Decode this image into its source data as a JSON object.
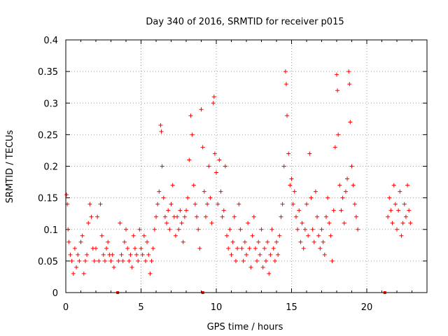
{
  "chart_data": {
    "type": "scatter",
    "title": "Day 340 of 2016, SRMTID for receiver p015",
    "xlabel": "GPS time / hours",
    "ylabel": "SRMTID / TECUs",
    "xlim": [
      0,
      24
    ],
    "ylim": [
      0,
      0.4
    ],
    "grid": true,
    "marker": "+",
    "color": "#ff0000",
    "xticks": [
      0,
      5,
      10,
      15,
      20
    ],
    "xtick_labels": [
      "0",
      "5",
      "10",
      "15",
      "20"
    ],
    "yticks": [
      0,
      0.05,
      0.1,
      0.15,
      0.2,
      0.25,
      0.3,
      0.35,
      0.4
    ],
    "ytick_labels": [
      "0",
      "0.05",
      "0.1",
      "0.15",
      "0.2",
      "0.25",
      "0.3",
      "0.35",
      "0.4"
    ],
    "series": [
      {
        "name": "SRMTID",
        "points": [
          [
            0.05,
            0.155
          ],
          [
            0.1,
            0.14
          ],
          [
            0.15,
            0.1
          ],
          [
            0.2,
            0.08
          ],
          [
            0.3,
            0.06
          ],
          [
            0.4,
            0.05
          ],
          [
            0.5,
            0.03
          ],
          [
            0.6,
            0.07
          ],
          [
            0.7,
            0.04
          ],
          [
            0.8,
            0.06
          ],
          [
            0.9,
            0.05
          ],
          [
            1.0,
            0.08
          ],
          [
            1.1,
            0.09
          ],
          [
            1.2,
            0.03
          ],
          [
            1.3,
            0.05
          ],
          [
            1.4,
            0.06
          ],
          [
            1.5,
            0.11
          ],
          [
            1.6,
            0.14
          ],
          [
            1.7,
            0.12
          ],
          [
            1.8,
            0.07
          ],
          [
            1.9,
            0.05
          ],
          [
            2.0,
            0.07
          ],
          [
            2.1,
            0.12
          ],
          [
            2.2,
            0.05
          ],
          [
            2.3,
            0.14
          ],
          [
            2.4,
            0.09
          ],
          [
            2.5,
            0.06
          ],
          [
            2.6,
            0.05
          ],
          [
            2.7,
            0.07
          ],
          [
            2.8,
            0.08
          ],
          [
            2.9,
            0.06
          ],
          [
            3.0,
            0.05
          ],
          [
            3.1,
            0.06
          ],
          [
            3.2,
            0.04
          ],
          [
            3.5,
            0.05
          ],
          [
            3.6,
            0.11
          ],
          [
            3.7,
            0.06
          ],
          [
            3.8,
            0.05
          ],
          [
            3.9,
            0.08
          ],
          [
            4.0,
            0.1
          ],
          [
            4.1,
            0.07
          ],
          [
            4.2,
            0.05
          ],
          [
            4.3,
            0.06
          ],
          [
            4.4,
            0.04
          ],
          [
            4.5,
            0.09
          ],
          [
            4.6,
            0.07
          ],
          [
            4.7,
            0.06
          ],
          [
            4.8,
            0.05
          ],
          [
            4.9,
            0.1
          ],
          [
            5.0,
            0.07
          ],
          [
            5.1,
            0.06
          ],
          [
            5.2,
            0.09
          ],
          [
            5.3,
            0.05
          ],
          [
            5.4,
            0.08
          ],
          [
            5.5,
            0.06
          ],
          [
            5.6,
            0.03
          ],
          [
            5.7,
            0.05
          ],
          [
            5.8,
            0.07
          ],
          [
            5.9,
            0.1
          ],
          [
            6.0,
            0.12
          ],
          [
            6.1,
            0.14
          ],
          [
            6.2,
            0.16
          ],
          [
            6.3,
            0.265
          ],
          [
            6.35,
            0.255
          ],
          [
            6.4,
            0.2
          ],
          [
            6.5,
            0.15
          ],
          [
            6.6,
            0.12
          ],
          [
            6.7,
            0.11
          ],
          [
            6.8,
            0.13
          ],
          [
            6.9,
            0.1
          ],
          [
            7.0,
            0.14
          ],
          [
            7.1,
            0.17
          ],
          [
            7.2,
            0.12
          ],
          [
            7.3,
            0.09
          ],
          [
            7.4,
            0.12
          ],
          [
            7.5,
            0.1
          ],
          [
            7.6,
            0.13
          ],
          [
            7.7,
            0.11
          ],
          [
            7.8,
            0.08
          ],
          [
            7.9,
            0.12
          ],
          [
            8.0,
            0.13
          ],
          [
            8.1,
            0.15
          ],
          [
            8.2,
            0.21
          ],
          [
            8.3,
            0.28
          ],
          [
            8.4,
            0.25
          ],
          [
            8.5,
            0.17
          ],
          [
            8.6,
            0.14
          ],
          [
            8.7,
            0.12
          ],
          [
            8.8,
            0.1
          ],
          [
            8.9,
            0.07
          ],
          [
            9.0,
            0.29
          ],
          [
            9.1,
            0.23
          ],
          [
            9.2,
            0.16
          ],
          [
            9.3,
            0.12
          ],
          [
            9.4,
            0.14
          ],
          [
            9.5,
            0.2
          ],
          [
            9.6,
            0.15
          ],
          [
            9.7,
            0.11
          ],
          [
            9.8,
            0.3
          ],
          [
            9.85,
            0.31
          ],
          [
            9.9,
            0.22
          ],
          [
            10.0,
            0.19
          ],
          [
            10.1,
            0.14
          ],
          [
            10.2,
            0.21
          ],
          [
            10.3,
            0.16
          ],
          [
            10.4,
            0.12
          ],
          [
            10.5,
            0.13
          ],
          [
            10.6,
            0.2
          ],
          [
            10.7,
            0.09
          ],
          [
            10.8,
            0.07
          ],
          [
            10.9,
            0.1
          ],
          [
            11.0,
            0.06
          ],
          [
            11.1,
            0.08
          ],
          [
            11.2,
            0.12
          ],
          [
            11.3,
            0.05
          ],
          [
            11.4,
            0.07
          ],
          [
            11.5,
            0.14
          ],
          [
            11.6,
            0.1
          ],
          [
            11.7,
            0.07
          ],
          [
            11.8,
            0.05
          ],
          [
            11.9,
            0.08
          ],
          [
            12.0,
            0.06
          ],
          [
            12.1,
            0.11
          ],
          [
            12.2,
            0.07
          ],
          [
            12.3,
            0.04
          ],
          [
            12.4,
            0.09
          ],
          [
            12.5,
            0.12
          ],
          [
            12.6,
            0.07
          ],
          [
            12.7,
            0.05
          ],
          [
            12.8,
            0.08
          ],
          [
            12.9,
            0.06
          ],
          [
            13.0,
            0.1
          ],
          [
            13.1,
            0.04
          ],
          [
            13.2,
            0.07
          ],
          [
            13.3,
            0.05
          ],
          [
            13.4,
            0.08
          ],
          [
            13.5,
            0.03
          ],
          [
            13.6,
            0.06
          ],
          [
            13.7,
            0.1
          ],
          [
            13.8,
            0.07
          ],
          [
            13.9,
            0.05
          ],
          [
            14.0,
            0.08
          ],
          [
            14.1,
            0.06
          ],
          [
            14.2,
            0.09
          ],
          [
            14.3,
            0.12
          ],
          [
            14.4,
            0.14
          ],
          [
            14.5,
            0.2
          ],
          [
            14.6,
            0.35
          ],
          [
            14.65,
            0.33
          ],
          [
            14.7,
            0.28
          ],
          [
            14.8,
            0.22
          ],
          [
            14.9,
            0.17
          ],
          [
            15.0,
            0.18
          ],
          [
            15.1,
            0.14
          ],
          [
            15.2,
            0.16
          ],
          [
            15.3,
            0.12
          ],
          [
            15.4,
            0.1
          ],
          [
            15.5,
            0.13
          ],
          [
            15.6,
            0.08
          ],
          [
            15.7,
            0.11
          ],
          [
            15.8,
            0.07
          ],
          [
            15.9,
            0.1
          ],
          [
            16.0,
            0.14
          ],
          [
            16.1,
            0.09
          ],
          [
            16.2,
            0.22
          ],
          [
            16.3,
            0.15
          ],
          [
            16.4,
            0.1
          ],
          [
            16.5,
            0.08
          ],
          [
            16.6,
            0.16
          ],
          [
            16.7,
            0.12
          ],
          [
            16.8,
            0.09
          ],
          [
            16.9,
            0.07
          ],
          [
            17.0,
            0.1
          ],
          [
            17.1,
            0.08
          ],
          [
            17.2,
            0.06
          ],
          [
            17.3,
            0.12
          ],
          [
            17.4,
            0.15
          ],
          [
            17.5,
            0.11
          ],
          [
            17.6,
            0.09
          ],
          [
            17.7,
            0.05
          ],
          [
            17.8,
            0.13
          ],
          [
            17.9,
            0.23
          ],
          [
            18.0,
            0.345
          ],
          [
            18.05,
            0.32
          ],
          [
            18.1,
            0.25
          ],
          [
            18.2,
            0.17
          ],
          [
            18.3,
            0.13
          ],
          [
            18.4,
            0.15
          ],
          [
            18.5,
            0.11
          ],
          [
            18.6,
            0.16
          ],
          [
            18.7,
            0.18
          ],
          [
            18.8,
            0.35
          ],
          [
            18.85,
            0.33
          ],
          [
            18.9,
            0.27
          ],
          [
            19.0,
            0.2
          ],
          [
            19.1,
            0.17
          ],
          [
            19.2,
            0.14
          ],
          [
            19.3,
            0.12
          ],
          [
            19.4,
            0.1
          ],
          [
            21.4,
            0.12
          ],
          [
            21.5,
            0.15
          ],
          [
            21.6,
            0.13
          ],
          [
            21.7,
            0.11
          ],
          [
            21.8,
            0.17
          ],
          [
            21.9,
            0.14
          ],
          [
            22.0,
            0.1
          ],
          [
            22.1,
            0.13
          ],
          [
            22.2,
            0.16
          ],
          [
            22.3,
            0.09
          ],
          [
            22.4,
            0.11
          ],
          [
            22.5,
            0.14
          ],
          [
            22.6,
            0.12
          ],
          [
            22.7,
            0.17
          ],
          [
            22.8,
            0.13
          ],
          [
            22.9,
            0.11
          ]
        ]
      }
    ],
    "axis_markers": [
      {
        "x": 3.45,
        "y": 0
      },
      {
        "x": 9.1,
        "y": 0
      },
      {
        "x": 21.2,
        "y": 0
      }
    ]
  }
}
